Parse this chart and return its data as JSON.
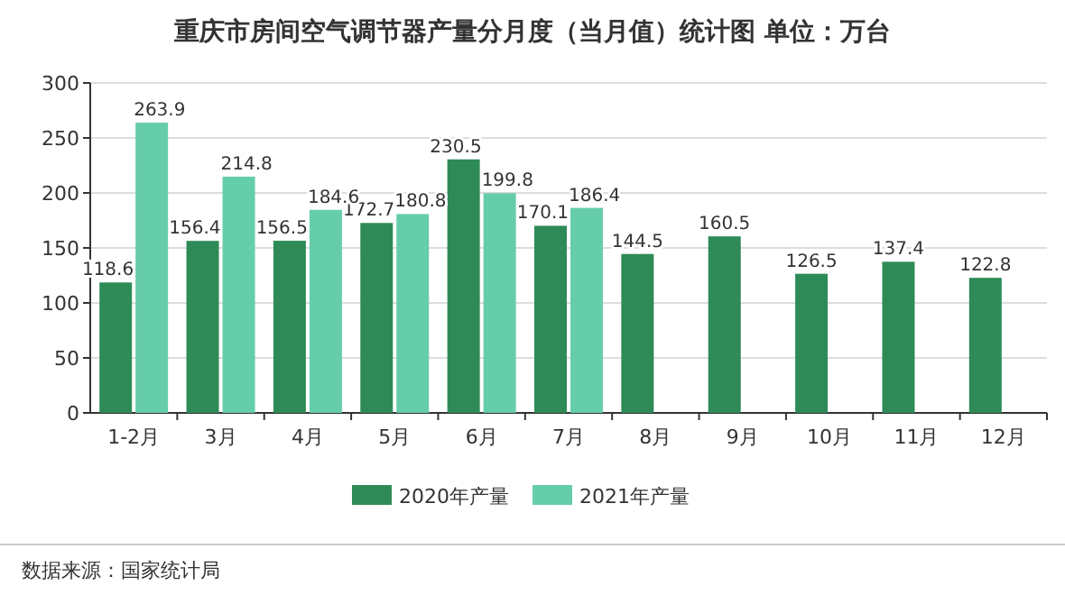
{
  "chart_data": {
    "type": "bar",
    "title": "重庆市房间空气调节器产量分月度（当月值）统计图 单位：万台",
    "categories": [
      "1-2月",
      "3月",
      "4月",
      "5月",
      "6月",
      "7月",
      "8月",
      "9月",
      "10月",
      "11月",
      "12月"
    ],
    "series": [
      {
        "name": "2020年产量",
        "color": "#2e8b57",
        "values": [
          118.6,
          156.4,
          156.5,
          172.7,
          230.5,
          170.1,
          144.5,
          160.5,
          126.5,
          137.4,
          122.8
        ]
      },
      {
        "name": "2021年产量",
        "color": "#66cdaa",
        "values": [
          263.9,
          214.8,
          184.6,
          180.8,
          199.8,
          186.4,
          null,
          null,
          null,
          null,
          null
        ]
      }
    ],
    "ylim": [
      0,
      300
    ],
    "yticks": [
      0,
      50,
      100,
      150,
      200,
      250,
      300
    ],
    "grid": "y",
    "legend": "bottom",
    "data_labels": true,
    "annotations": [
      "数据来源：国家统计局"
    ]
  }
}
